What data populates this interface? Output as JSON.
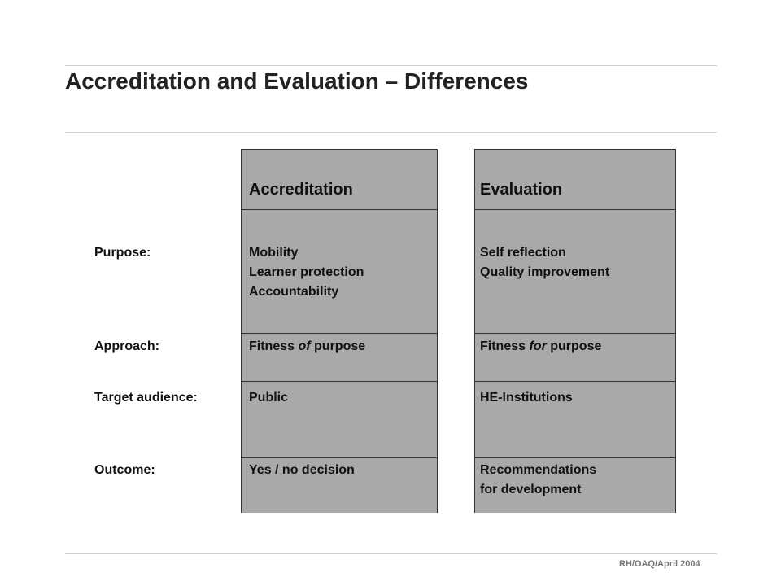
{
  "slide": {
    "title": "Accreditation and Evaluation – Differences",
    "footer": "RH/OAQ/April  2004"
  },
  "columns": {
    "accreditation": "Accreditation",
    "evaluation": "Evaluation"
  },
  "rows": [
    {
      "label": "Purpose:",
      "accreditation": [
        "Mobility",
        "Learner protection",
        "Accountability"
      ],
      "evaluation": [
        "Self reflection",
        "Quality improvement"
      ]
    },
    {
      "label": "Approach:",
      "accreditation_parts": [
        "Fitness ",
        "of",
        " purpose"
      ],
      "evaluation_parts": [
        "Fitness ",
        "for",
        " purpose"
      ]
    },
    {
      "label": "Target audience:",
      "accreditation": [
        "Public"
      ],
      "evaluation": [
        "HE-Institutions"
      ]
    },
    {
      "label": "Outcome:",
      "accreditation": [
        "Yes / no decision"
      ],
      "evaluation": [
        "Recommendations",
        "for development"
      ]
    }
  ],
  "colors": {
    "column_fill": "#a9a9a9",
    "border": "#333333",
    "rule": "#cfcfcf"
  }
}
